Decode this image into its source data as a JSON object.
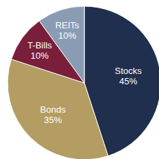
{
  "chart_data": {
    "type": "pie",
    "categories": [
      "Stocks",
      "Bonds",
      "T-Bills",
      "REITs"
    ],
    "values": [
      45,
      35,
      10,
      10
    ],
    "value_labels": [
      "45%",
      "35%",
      "10%",
      "10%"
    ],
    "colors": [
      "#1f2f4d",
      "#b39d63",
      "#7a1f3b",
      "#8a9cb3"
    ],
    "data_labels": true
  }
}
